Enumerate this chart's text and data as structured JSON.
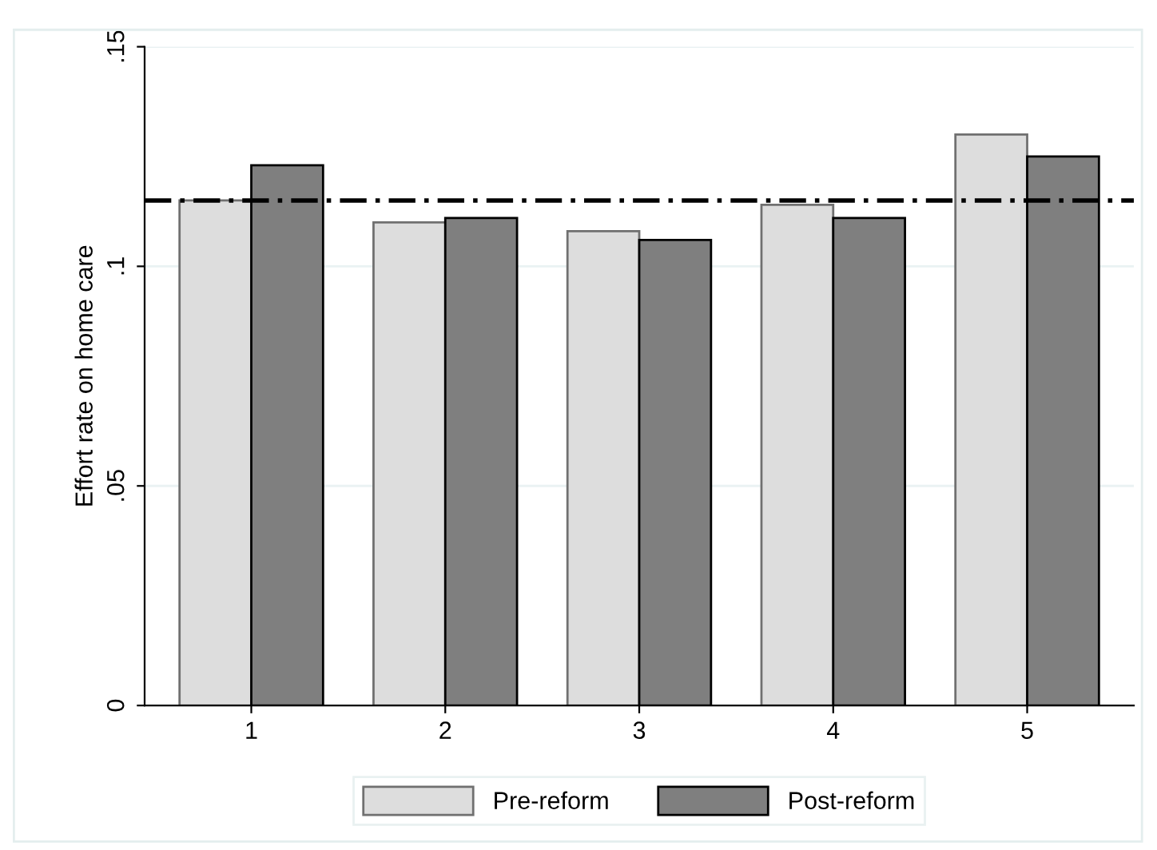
{
  "chart_data": {
    "type": "bar",
    "ylabel": "Effort rate on home care",
    "categories": [
      "1",
      "2",
      "3",
      "4",
      "5"
    ],
    "series": [
      {
        "name": "Pre-reform",
        "color": "#dddddd",
        "values": [
          0.115,
          0.11,
          0.108,
          0.114,
          0.13
        ]
      },
      {
        "name": "Post-reform",
        "color": "#7f7f7f",
        "values": [
          0.123,
          0.111,
          0.106,
          0.111,
          0.125
        ]
      }
    ],
    "ylim": [
      0,
      0.15
    ],
    "yticks": [
      {
        "value": 0,
        "label": "0"
      },
      {
        "value": 0.05,
        "label": ".05"
      },
      {
        "value": 0.1,
        "label": ".1"
      },
      {
        "value": 0.15,
        "label": ".15"
      }
    ],
    "ref_lines": [
      {
        "axis": "y",
        "value": 0.115,
        "color": "#000000",
        "line_style": "dashed"
      }
    ],
    "grid": "y",
    "legend": "bottom"
  }
}
